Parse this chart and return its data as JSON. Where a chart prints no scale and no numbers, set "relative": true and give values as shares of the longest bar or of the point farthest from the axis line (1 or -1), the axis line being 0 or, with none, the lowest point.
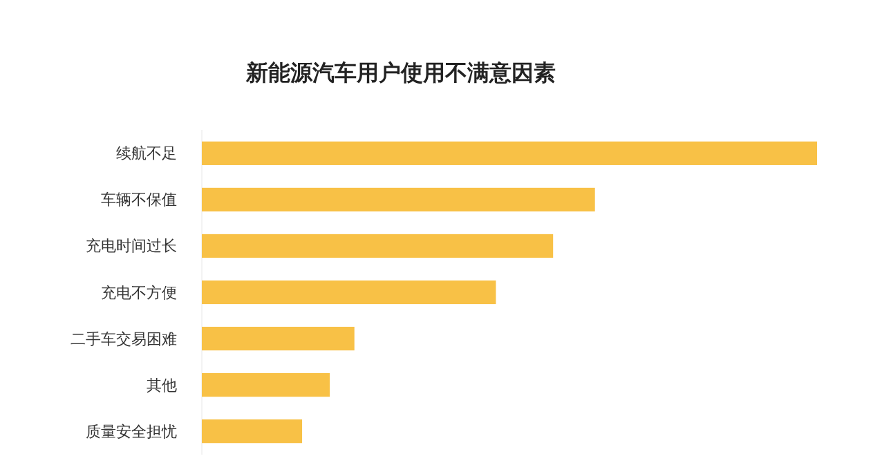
{
  "chart_data": {
    "type": "bar",
    "title": "新能源汽车用户使用不满意因素",
    "orientation": "horizontal",
    "relative": true,
    "categories": [
      "续航不足",
      "车辆不保值",
      "充电时间过长",
      "充电不方便",
      "二手车交易困难",
      "其他",
      "质量安全担忧"
    ],
    "values": [
      1,
      0.639,
      0.571,
      0.478,
      0.248,
      0.208,
      0.163
    ],
    "color": "#f8c146"
  }
}
